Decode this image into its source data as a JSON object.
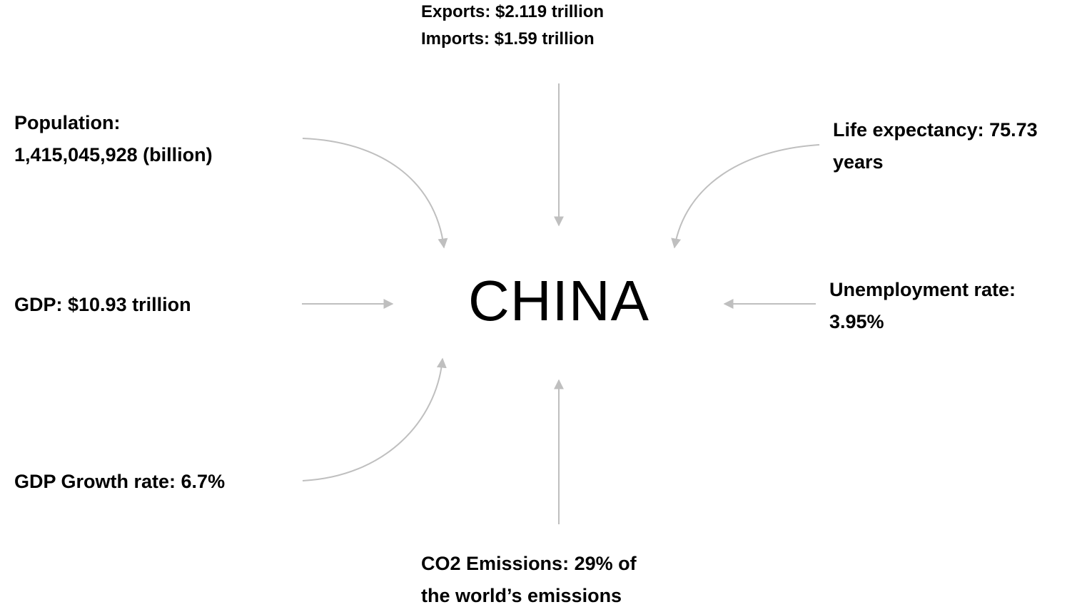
{
  "center": {
    "title": "CHINA"
  },
  "trade": {
    "exports": "Exports: $2.119 trillion",
    "imports": "Imports: $1.59 trillion"
  },
  "population": {
    "line1": "Population:",
    "line2": "1,415,045,928 (billion)"
  },
  "life_expectancy": {
    "line1": "Life expectancy: 75.73",
    "line2": "years"
  },
  "gdp": {
    "text": "GDP: $10.93 trillion"
  },
  "unemployment": {
    "line1": "Unemployment rate:",
    "line2": "3.95%"
  },
  "gdp_growth": {
    "text": "GDP Growth rate: 6.7%"
  },
  "co2": {
    "line1": "CO2 Emissions: 29% of",
    "line2": "the world’s emissions"
  },
  "colors": {
    "arrow": "#bfbfbf",
    "text": "#000000",
    "background": "#ffffff"
  }
}
